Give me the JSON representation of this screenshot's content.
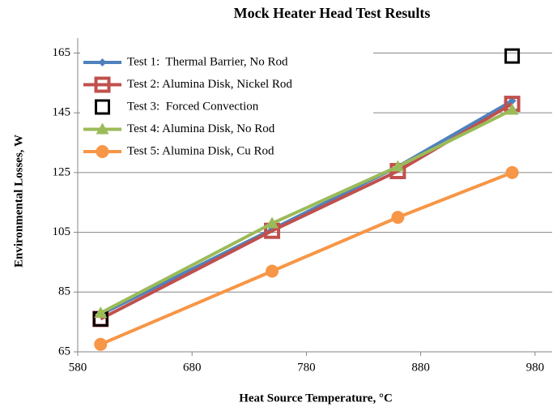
{
  "chart_data": {
    "type": "line",
    "title": "Mock Heater Head Test Results",
    "x_label": "Heat Source Temperature,  °C",
    "y_label": "Environmental Losses, W",
    "x": [
      600,
      750,
      860,
      960
    ],
    "xlim": [
      580,
      995
    ],
    "xticks": [
      580,
      680,
      780,
      880,
      980
    ],
    "ylim": [
      65,
      170
    ],
    "yticks": [
      65,
      85,
      105,
      125,
      145,
      165
    ],
    "grid": true,
    "legend": "upper left",
    "series": [
      {
        "name": "Test 1:  Thermal Barrier, No Rod",
        "color": "#4f81bd",
        "marker": "diamond",
        "line": true,
        "values": [
          77.5,
          106,
          127,
          149
        ]
      },
      {
        "name": "Test 2: Alumina Disk, Nickel Rod",
        "color": "#c0504d",
        "marker": "square",
        "line": true,
        "values": [
          76,
          105.5,
          125.5,
          148
        ]
      },
      {
        "name": "Test 3:  Forced Convection",
        "color": "#000000",
        "marker": "hollow-square",
        "line": false,
        "values": [
          76,
          null,
          null,
          164
        ]
      },
      {
        "name": "Test 4: Alumina Disk, No Rod",
        "color": "#9bbb59",
        "marker": "triangle",
        "line": true,
        "values": [
          78,
          108,
          127,
          146
        ]
      },
      {
        "name": "Test 5: Alumina Disk, Cu Rod",
        "color": "#f79646",
        "marker": "circle",
        "line": true,
        "values": [
          67.5,
          92,
          110,
          125
        ]
      }
    ]
  }
}
